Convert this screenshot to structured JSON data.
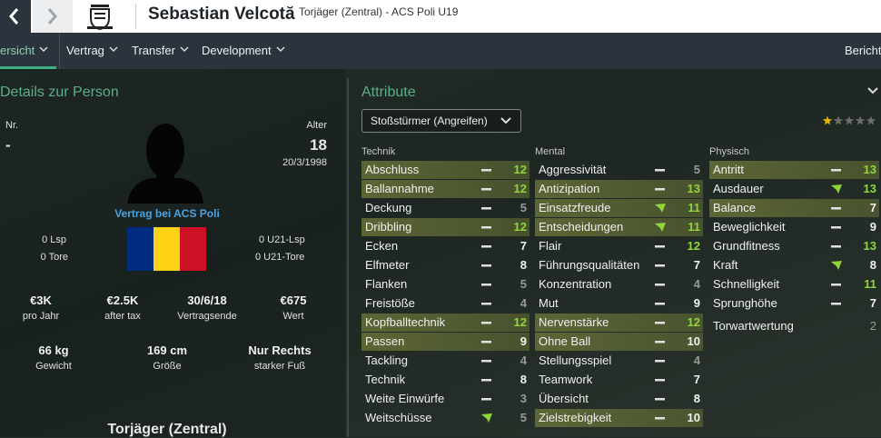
{
  "header": {
    "player_name": "Sebastian Velcotă",
    "subtitle": "Torjäger (Zentral) - ACS Poli U19"
  },
  "tabs": [
    "ersicht",
    "Vertrag",
    "Transfer",
    "Development"
  ],
  "tab_right": "Bericht",
  "details": {
    "title": "Details zur Person",
    "number_label": "Nr.",
    "number": "-",
    "age_label": "Alter",
    "age": 18,
    "birth_date": "20/3/1998",
    "contract": "Vertrag bei ACS Poli",
    "caps": [
      "0 Lsp",
      "0 Tore"
    ],
    "u21_caps": [
      "0 U21-Lsp",
      "0 U21-Tore"
    ],
    "stats": [
      {
        "value": "€3K",
        "label": "pro Jahr"
      },
      {
        "value": "€2.5K",
        "label": "after tax"
      },
      {
        "value": "30/6/18",
        "label": "Vertragsende"
      },
      {
        "value": "€675",
        "label": "Wert"
      }
    ],
    "physical": [
      {
        "value": "66 kg",
        "label": "Gewicht"
      },
      {
        "value": "169 cm",
        "label": "Größe"
      },
      {
        "value": "Nur Rechts",
        "label": "starker Fuß"
      }
    ],
    "role": "Torjäger (Zentral)"
  },
  "attributes": {
    "title": "Attribute",
    "role_select": "Stoßstürmer (Angreifen)",
    "stars": 1,
    "stars_max": 5,
    "columns": [
      {
        "title": "Technik",
        "rows": [
          {
            "name": "Abschluss",
            "value": 12,
            "key": true,
            "trend": "flat"
          },
          {
            "name": "Ballannahme",
            "value": 12,
            "key": true,
            "trend": "flat"
          },
          {
            "name": "Deckung",
            "value": 5,
            "key": false,
            "trend": "flat"
          },
          {
            "name": "Dribbling",
            "value": 12,
            "key": true,
            "trend": "flat"
          },
          {
            "name": "Ecken",
            "value": 7,
            "key": false,
            "trend": "flat"
          },
          {
            "name": "Elfmeter",
            "value": 8,
            "key": false,
            "trend": "flat"
          },
          {
            "name": "Flanken",
            "value": 5,
            "key": false,
            "trend": "flat"
          },
          {
            "name": "Freistöße",
            "value": 4,
            "key": false,
            "trend": "flat"
          },
          {
            "name": "Kopfballtechnik",
            "value": 12,
            "key": true,
            "trend": "flat"
          },
          {
            "name": "Passen",
            "value": 9,
            "key": true,
            "trend": "flat"
          },
          {
            "name": "Tackling",
            "value": 4,
            "key": false,
            "trend": "flat"
          },
          {
            "name": "Technik",
            "value": 8,
            "key": false,
            "trend": "flat"
          },
          {
            "name": "Weite Einwürfe",
            "value": 3,
            "key": false,
            "trend": "flat"
          },
          {
            "name": "Weitschüsse",
            "value": 5,
            "key": false,
            "trend": "up"
          }
        ]
      },
      {
        "title": "Mental",
        "rows": [
          {
            "name": "Aggressivität",
            "value": 5,
            "key": false,
            "trend": "flat"
          },
          {
            "name": "Antizipation",
            "value": 13,
            "key": true,
            "trend": "flat"
          },
          {
            "name": "Einsatzfreude",
            "value": 11,
            "key": true,
            "trend": "up"
          },
          {
            "name": "Entscheidungen",
            "value": 11,
            "key": true,
            "trend": "up"
          },
          {
            "name": "Flair",
            "value": 12,
            "key": false,
            "trend": "flat"
          },
          {
            "name": "Führungsqualitäten",
            "value": 7,
            "key": false,
            "trend": "flat"
          },
          {
            "name": "Konzentration",
            "value": 4,
            "key": false,
            "trend": "flat"
          },
          {
            "name": "Mut",
            "value": 9,
            "key": false,
            "trend": "flat"
          },
          {
            "name": "Nervenstärke",
            "value": 12,
            "key": true,
            "trend": "flat"
          },
          {
            "name": "Ohne Ball",
            "value": 10,
            "key": true,
            "trend": "flat"
          },
          {
            "name": "Stellungsspiel",
            "value": 4,
            "key": false,
            "trend": "flat"
          },
          {
            "name": "Teamwork",
            "value": 7,
            "key": false,
            "trend": "flat"
          },
          {
            "name": "Übersicht",
            "value": 8,
            "key": false,
            "trend": "flat"
          },
          {
            "name": "Zielstrebigkeit",
            "value": 10,
            "key": true,
            "trend": "flat"
          }
        ]
      },
      {
        "title": "Physisch",
        "rows": [
          {
            "name": "Antritt",
            "value": 13,
            "key": true,
            "trend": "flat"
          },
          {
            "name": "Ausdauer",
            "value": 13,
            "key": false,
            "trend": "up"
          },
          {
            "name": "Balance",
            "value": 7,
            "key": true,
            "trend": "flat"
          },
          {
            "name": "Beweglichkeit",
            "value": 9,
            "key": false,
            "trend": "flat"
          },
          {
            "name": "Grundfitness",
            "value": 13,
            "key": false,
            "trend": "flat"
          },
          {
            "name": "Kraft",
            "value": 8,
            "key": false,
            "trend": "up"
          },
          {
            "name": "Schnelligkeit",
            "value": 11,
            "key": false,
            "trend": "flat"
          },
          {
            "name": "Sprunghöhe",
            "value": 7,
            "key": false,
            "trend": "flat"
          }
        ]
      }
    ],
    "gk_label": "Torwartwertung",
    "gk_value": 2
  }
}
